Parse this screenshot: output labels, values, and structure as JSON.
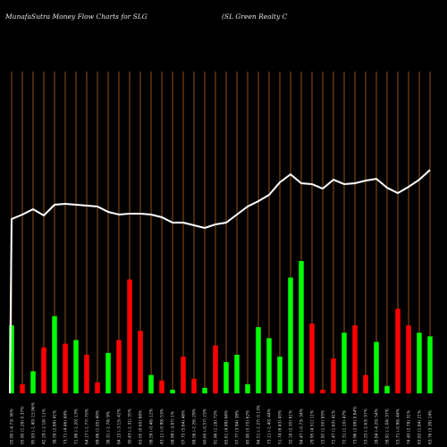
{
  "header": {
    "title": "MunafaSutra  Money Flow  Charts for SLG",
    "subtitle": "(SL  Green  Realty C"
  },
  "chart_data": {
    "type": "bar",
    "title": "MunafaSutra  Money Flow  Charts for SLG",
    "subtitle": "(SL  Green  Realty C",
    "colors": {
      "up": "#00ff00",
      "down": "#ff0000",
      "line": "#ffffff",
      "grid": "#b8651b",
      "background": "#000000"
    },
    "grid": true,
    "x": [
      "05.90 (-4.73) 36%",
      "05.90 (1.29) 0.37%",
      "95.83 (-1.40) 15.96%",
      "42.29 (-2.18) 11%",
      "38.59 (2.89) 41%",
      "73.71 (4.46) 44%",
      "71.98 (-1.20) 13%",
      "64.17 (-1.77) 70%",
      "89.86 (1.05) 40%",
      "38.31 (-1.74) 9%",
      "84.15 (-3.15) 42%",
      "30.43 (-1.31) 35%",
      "63.05 (0.65) 88%",
      "08.59 (-0.46) 12%",
      "43.11 (-0.99) 53%",
      "08.99 (-3.87) 1%",
      "07.75 (5.64) 46%",
      "68.56 (-2.26) 29%",
      "60.60 (-0.57) 23%",
      "91.46 (1.18) 72%",
      "65.61 (4.89) 66%",
      "07.77 (3.94) 38%",
      "45.90 (5.75) 62%",
      "94.51 (-1.27) 0.13%",
      "73.11 (-1.40) 44%",
      "51.74 (6.43) 45%",
      "32.18 (2.35) 61%",
      "94.47 (-0.73) 34%",
      "29.95 (4.51) 11%",
      "15.82 (1.50) 85%",
      "72.47 (1.63) 41%",
      "72.31 (1.10) 47%",
      "73.96 (2.09) 0.84%",
      "53.25 (-2.63) 37%",
      "28.84 (-4.20) 54%",
      "58.91 (-1.04) 37%",
      "53.71 (-0.99) 44%",
      "74.40 (2.78) 31%",
      "83.82 (1.84) 21%",
      "63.76 (3.39) 14%"
    ],
    "series": [
      {
        "values": [
          37,
          -5,
          12,
          -25,
          42,
          -27,
          29,
          -21,
          -6,
          22,
          -29,
          62,
          -34,
          10,
          -7,
          2,
          -20,
          -8,
          3,
          -26,
          17,
          21,
          5,
          36,
          30,
          20,
          63,
          72,
          -38,
          -2,
          -19,
          33,
          -37,
          -10,
          28,
          4,
          -46,
          -37,
          33,
          31
        ]
      }
    ],
    "direction": [
      "up",
      "down",
      "up",
      "down",
      "up",
      "down",
      "up",
      "down",
      "down",
      "up",
      "down",
      "down",
      "down",
      "up",
      "down",
      "up",
      "down",
      "down",
      "up",
      "down",
      "up",
      "up",
      "up",
      "up",
      "up",
      "up",
      "up",
      "up",
      "down",
      "down",
      "down",
      "up",
      "down",
      "down",
      "up",
      "up",
      "down",
      "down",
      "up",
      "up"
    ],
    "price_line": [
      245,
      240,
      234,
      241,
      229,
      228,
      229,
      230,
      231,
      237,
      240,
      239,
      239,
      240,
      243,
      249,
      249,
      252,
      255,
      251,
      249,
      240,
      231,
      225,
      218,
      204,
      195,
      205,
      206,
      211,
      201,
      206,
      205,
      202,
      200,
      210,
      216,
      209,
      201,
      190
    ]
  }
}
